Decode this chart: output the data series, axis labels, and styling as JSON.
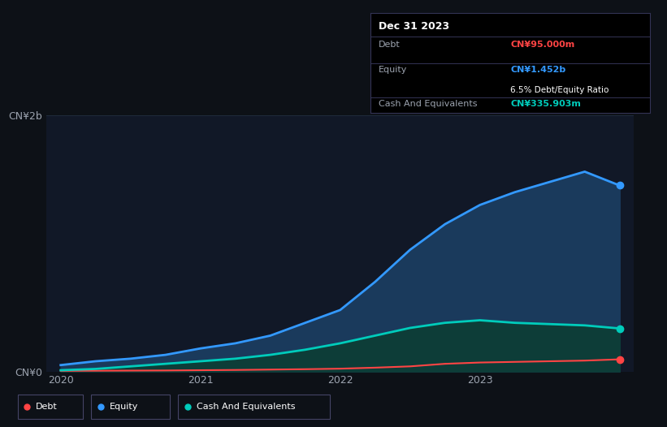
{
  "bg_color": "#0d1117",
  "plot_bg": "#111827",
  "grid_color": "#1e2a3a",
  "text_color": "#9ca3af",
  "title_text_color": "#ffffff",
  "debt_color": "#ff4444",
  "equity_color": "#3399ff",
  "cash_color": "#00ccbb",
  "equity_fill": "#1a3a5c",
  "cash_fill": "#0d3d38",
  "x_years": [
    2020.0,
    2020.25,
    2020.5,
    2020.75,
    2021.0,
    2021.25,
    2021.5,
    2021.75,
    2022.0,
    2022.25,
    2022.5,
    2022.75,
    2023.0,
    2023.25,
    2023.5,
    2023.75,
    2024.0
  ],
  "equity_values": [
    0.05,
    0.08,
    0.1,
    0.13,
    0.18,
    0.22,
    0.28,
    0.38,
    0.48,
    0.7,
    0.95,
    1.15,
    1.3,
    1.4,
    1.48,
    1.56,
    1.452
  ],
  "debt_values": [
    0.005,
    0.006,
    0.007,
    0.008,
    0.01,
    0.012,
    0.015,
    0.018,
    0.022,
    0.03,
    0.04,
    0.06,
    0.07,
    0.075,
    0.08,
    0.085,
    0.095
  ],
  "cash_values": [
    0.01,
    0.02,
    0.04,
    0.06,
    0.08,
    0.1,
    0.13,
    0.17,
    0.22,
    0.28,
    0.34,
    0.38,
    0.4,
    0.38,
    0.37,
    0.36,
    0.336
  ],
  "ylim": [
    0,
    2.0
  ],
  "ytick_labels": [
    "CN¥0",
    "CN¥2b"
  ],
  "ytick_values": [
    0,
    2.0
  ],
  "xlabel_ticks": [
    2020,
    2021,
    2022,
    2023
  ],
  "xlim": [
    2019.9,
    2024.1
  ],
  "annotation_title": "Dec 31 2023",
  "ann_debt_label": "Debt",
  "ann_debt_value": "CN¥95.000m",
  "ann_equity_label": "Equity",
  "ann_equity_value": "CN¥1.452b",
  "ann_ratio": "6.5% Debt/Equity Ratio",
  "ann_cash_label": "Cash And Equivalents",
  "ann_cash_value": "CN¥335.903m",
  "legend_labels": [
    "Debt",
    "Equity",
    "Cash And Equivalents"
  ],
  "legend_colors": [
    "#ff4444",
    "#3399ff",
    "#00ccbb"
  ]
}
